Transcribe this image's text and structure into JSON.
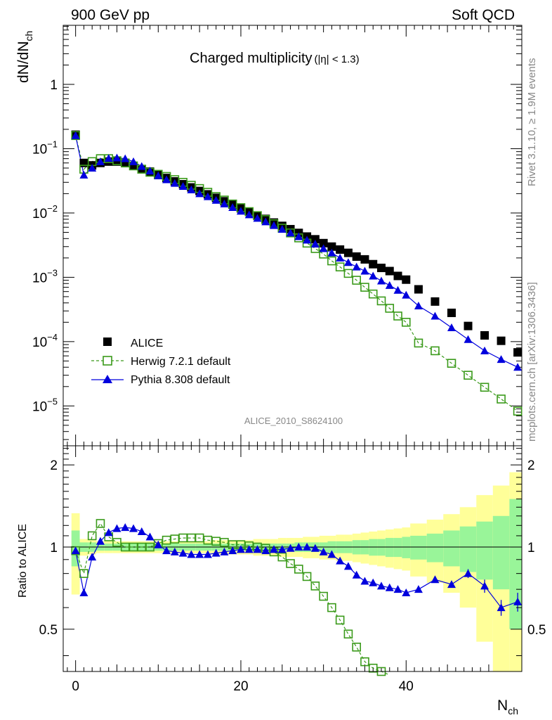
{
  "header": {
    "left": "900 GeV pp",
    "right": "Soft QCD",
    "plot_title_main": "Charged multiplicity",
    "plot_title_cut": "(|η| < 1.3)",
    "side_text_top": "Rivet 3.1.10, ≥ 1.9M events",
    "side_text_bottom": "mcplots.cern.ch [arXiv:1306.3436]",
    "watermark": "ALICE_2010_S8624100"
  },
  "legend": {
    "alice": "ALICE",
    "herwig": "Herwig 7.2.1 default",
    "pythia": "Pythia 8.308 default"
  },
  "colors": {
    "alice": "#000000",
    "herwig": "#3a9a1a",
    "pythia": "#0000dd",
    "band_inner": "#99f599",
    "band_outer": "#ffff99"
  },
  "chart_data": [
    {
      "type": "scatter",
      "panel": "main",
      "ylabel_main": "dN/dN",
      "ylabel_sub": "ch",
      "y_scale": "log",
      "ylim": [
        2.4e-06,
        1.0
      ],
      "xlim": [
        -1.5,
        54
      ],
      "yticks_major": [
        {
          "v": 1e-05,
          "base": "10",
          "exp": "−5"
        },
        {
          "v": 0.0001,
          "base": "10",
          "exp": "−4"
        },
        {
          "v": 0.001,
          "base": "10",
          "exp": "−3"
        },
        {
          "v": 0.01,
          "base": "10",
          "exp": "−2"
        },
        {
          "v": 0.1,
          "base": "10",
          "exp": "−1"
        },
        {
          "v": 1,
          "base": "1",
          "exp": ""
        }
      ],
      "x": [
        0,
        1,
        2,
        3,
        4,
        5,
        6,
        7,
        8,
        9,
        10,
        11,
        12,
        13,
        14,
        15,
        16,
        17,
        18,
        19,
        20,
        21,
        22,
        23,
        24,
        25,
        26,
        27,
        28,
        29,
        30,
        31,
        32,
        33,
        34,
        35,
        36,
        37,
        38,
        39,
        40,
        41.5,
        43.5,
        45.5,
        47.5,
        49.5,
        51.5,
        53.5
      ],
      "series": [
        {
          "name": "ALICE",
          "marker": "filled-square",
          "values": [
            0.165,
            0.06,
            0.055,
            0.06,
            0.063,
            0.063,
            0.06,
            0.054,
            0.048,
            0.044,
            0.039,
            0.035,
            0.031,
            0.028,
            0.025,
            0.022,
            0.0195,
            0.0172,
            0.0152,
            0.0135,
            0.0118,
            0.0104,
            0.0091,
            0.0081,
            0.0071,
            0.0063,
            0.0056,
            0.0049,
            0.0043,
            0.0039,
            0.0034,
            0.003,
            0.0027,
            0.0024,
            0.0021,
            0.0019,
            0.0016,
            0.0014,
            0.00125,
            0.00105,
            0.00092,
            0.00065,
            0.00042,
            0.00028,
            0.000175,
            0.000125,
            0.000103,
            6.8e-05
          ]
        },
        {
          "name": "Herwig 7.2.1 default",
          "marker": "open-square",
          "values": [
            0.16,
            0.048,
            0.063,
            0.07,
            0.07,
            0.065,
            0.06,
            0.054,
            0.048,
            0.043,
            0.04,
            0.037,
            0.033,
            0.03,
            0.027,
            0.024,
            0.021,
            0.018,
            0.0159,
            0.0138,
            0.0121,
            0.0105,
            0.0091,
            0.0079,
            0.0068,
            0.0058,
            0.0049,
            0.0041,
            0.0034,
            0.0028,
            0.0023,
            0.0018,
            0.00145,
            0.00115,
            0.0009,
            0.0007,
            0.00055,
            0.00043,
            0.00033,
            0.00025,
            0.0002,
            9.5e-05,
            7.2e-05,
            4.6e-05,
            3e-05,
            1.95e-05,
            1.28e-05,
            8.3e-06
          ],
          "fit_note": ""
        },
        {
          "name": "Pythia 8.308 default",
          "marker": "filled-triangle",
          "values": [
            0.16,
            0.039,
            0.05,
            0.063,
            0.071,
            0.072,
            0.07,
            0.063,
            0.053,
            0.045,
            0.038,
            0.033,
            0.029,
            0.026,
            0.023,
            0.02,
            0.018,
            0.0158,
            0.0139,
            0.0122,
            0.0107,
            0.0094,
            0.0083,
            0.0073,
            0.0064,
            0.0056,
            0.0049,
            0.0043,
            0.0038,
            0.0033,
            0.0028,
            0.0024,
            0.002,
            0.0017,
            0.00145,
            0.00125,
            0.00105,
            0.00088,
            0.00075,
            0.00063,
            0.00053,
            0.00036,
            0.00025,
            0.000165,
            0.000108,
            7.2e-05,
            5.3e-05,
            4e-05
          ]
        }
      ]
    },
    {
      "type": "scatter",
      "panel": "ratio",
      "ylabel": "Ratio to ALICE",
      "ylim": [
        0.35,
        2.35
      ],
      "xlim": [
        -1.5,
        54
      ],
      "xlabel_main": "N",
      "xlabel_sub": "ch",
      "xticks": [
        0,
        20,
        40
      ],
      "yticks_major": [
        0.5,
        1,
        2
      ],
      "x": [
        0,
        1,
        2,
        3,
        4,
        5,
        6,
        7,
        8,
        9,
        10,
        11,
        12,
        13,
        14,
        15,
        16,
        17,
        18,
        19,
        20,
        21,
        22,
        23,
        24,
        25,
        26,
        27,
        28,
        29,
        30,
        31,
        32,
        33,
        34,
        35,
        36,
        37,
        38,
        39,
        40,
        41.5,
        43.5,
        45.5,
        47.5,
        49.5,
        51.5,
        53.5
      ],
      "band_edges": [
        -0.5,
        0.5,
        1.5,
        2.5,
        3.5,
        4.5,
        5.5,
        6.5,
        7.5,
        8.5,
        9.5,
        10.5,
        11.5,
        12.5,
        13.5,
        14.5,
        15.5,
        16.5,
        17.5,
        18.5,
        19.5,
        20.5,
        21.5,
        22.5,
        23.5,
        24.5,
        25.5,
        26.5,
        27.5,
        28.5,
        29.5,
        30.5,
        31.5,
        32.5,
        33.5,
        34.5,
        35.5,
        36.5,
        37.5,
        38.5,
        39.5,
        40.5,
        42.5,
        44.5,
        46.5,
        48.5,
        50.5,
        52.5,
        54.5
      ],
      "band_inner": [
        0.15,
        0.04,
        0.04,
        0.03,
        0.03,
        0.03,
        0.03,
        0.03,
        0.03,
        0.03,
        0.03,
        0.03,
        0.03,
        0.03,
        0.03,
        0.03,
        0.03,
        0.03,
        0.03,
        0.03,
        0.03,
        0.03,
        0.03,
        0.03,
        0.03,
        0.03,
        0.03,
        0.04,
        0.04,
        0.04,
        0.04,
        0.05,
        0.05,
        0.05,
        0.06,
        0.06,
        0.07,
        0.07,
        0.08,
        0.08,
        0.09,
        0.1,
        0.12,
        0.15,
        0.19,
        0.24,
        0.3,
        0.5
      ],
      "band_outer": [
        0.33,
        0.07,
        0.06,
        0.05,
        0.05,
        0.05,
        0.05,
        0.05,
        0.05,
        0.05,
        0.05,
        0.05,
        0.05,
        0.05,
        0.05,
        0.05,
        0.05,
        0.06,
        0.06,
        0.06,
        0.06,
        0.06,
        0.07,
        0.07,
        0.07,
        0.08,
        0.08,
        0.08,
        0.09,
        0.09,
        0.1,
        0.1,
        0.11,
        0.11,
        0.12,
        0.13,
        0.14,
        0.15,
        0.16,
        0.17,
        0.18,
        0.22,
        0.26,
        0.32,
        0.4,
        0.55,
        0.68,
        0.88
      ],
      "series": [
        {
          "name": "Herwig 7.2.1 default",
          "values": [
            0.97,
            0.8,
            1.1,
            1.22,
            1.09,
            1.04,
            1.0,
            1.0,
            1.0,
            1.0,
            1.03,
            1.06,
            1.07,
            1.08,
            1.08,
            1.08,
            1.06,
            1.05,
            1.04,
            1.02,
            1.02,
            1.01,
            1.0,
            0.99,
            0.96,
            0.92,
            0.87,
            0.83,
            0.78,
            0.72,
            0.66,
            0.6,
            0.54,
            0.48,
            0.43,
            0.38,
            0.36,
            0.35,
            0.34
          ]
        },
        {
          "name": "Pythia 8.308 default",
          "values": [
            0.97,
            0.68,
            0.92,
            1.05,
            1.13,
            1.17,
            1.18,
            1.17,
            1.14,
            1.09,
            1.02,
            0.97,
            0.96,
            0.95,
            0.94,
            0.94,
            0.94,
            0.95,
            0.96,
            0.97,
            0.98,
            0.98,
            0.98,
            0.97,
            0.98,
            0.98,
            0.99,
            1.0,
            1.0,
            0.99,
            0.96,
            0.94,
            0.89,
            0.85,
            0.79,
            0.75,
            0.74,
            0.72,
            0.71,
            0.7,
            0.68,
            0.7,
            0.76,
            0.73,
            0.8,
            0.72,
            0.6,
            0.63
          ],
          "errors": [
            0,
            0,
            0,
            0,
            0,
            0,
            0,
            0,
            0,
            0,
            0,
            0,
            0,
            0,
            0,
            0,
            0,
            0,
            0,
            0,
            0,
            0,
            0,
            0,
            0,
            0,
            0,
            0,
            0,
            0,
            0,
            0,
            0,
            0,
            0,
            0,
            0,
            0,
            0,
            0,
            0,
            0.01,
            0.02,
            0.02,
            0.03,
            0.04,
            0.04,
            0.05
          ]
        }
      ]
    }
  ]
}
